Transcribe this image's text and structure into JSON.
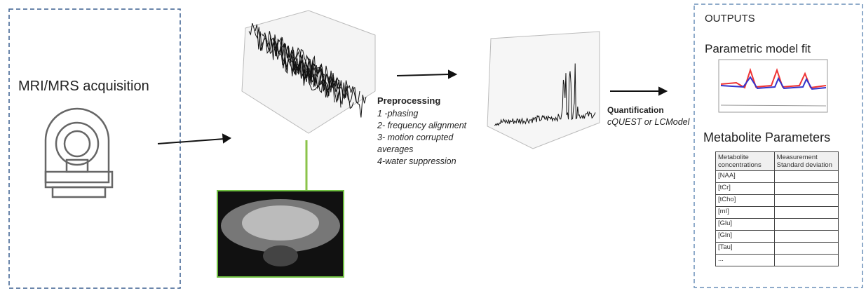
{
  "acquisition": {
    "label": "MRI/MRS acquisition"
  },
  "preprocessing": {
    "title": "Preprocessing",
    "steps": [
      "1 -phasing",
      "2- frequency alignment",
      "3- motion corrupted averages",
      "4-water suppression"
    ]
  },
  "quantification": {
    "title": "Quantification",
    "method": "cQUEST or LCModel"
  },
  "outputs": {
    "title": "OUTPUTS",
    "fit_title": "Parametric model fit",
    "params_title": "Metabolite Parameters",
    "table": {
      "header": [
        "Metabolite concentrations",
        "Measurement Standard deviation"
      ],
      "rows": [
        "[NAA]",
        "[tCr]",
        "[tCho]",
        "[mI]",
        "[Glu]",
        "[Gln]",
        "[Tau]",
        "..."
      ]
    }
  }
}
